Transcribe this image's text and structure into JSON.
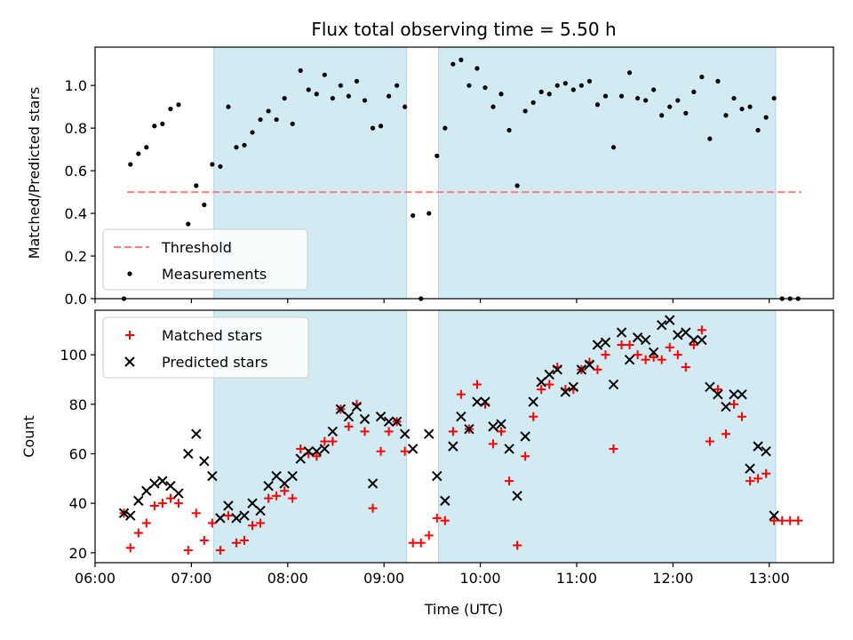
{
  "figure": {
    "title": "Flux total observing time = 5.50 h",
    "xlabel": "Time (UTC)"
  },
  "colors": {
    "shade": "#add8e6",
    "threshold": "#ff7f7f",
    "measurements": "#000000",
    "matched": "#ff0000",
    "predicted": "#000000",
    "axes": "#000000"
  },
  "chart_data": [
    {
      "type": "scatter",
      "panel": "top",
      "ylabel": "Matched/Predicted stars",
      "xlim": [
        "06:00",
        "13:40"
      ],
      "ylim": [
        0,
        1.18
      ],
      "yticks": [
        0.0,
        0.2,
        0.4,
        0.6,
        0.8,
        1.0
      ],
      "ytick_labels": [
        "0.0",
        "0.2",
        "0.4",
        "0.6",
        "0.8",
        "1.0"
      ],
      "xtick_labels": [],
      "shaded_intervals": [
        [
          "07:14",
          "09:14"
        ],
        [
          "09:34",
          "13:04"
        ]
      ],
      "legend": {
        "placement": "lower left",
        "entries": [
          "Threshold",
          "Measurements"
        ]
      },
      "threshold": {
        "name": "Threshold",
        "y": 0.5,
        "x": [
          "06:20",
          "13:20"
        ]
      },
      "series": [
        {
          "name": "Measurements",
          "marker": "dot",
          "points": [
            [
              "06:18",
              0.0
            ],
            [
              "06:22",
              0.63
            ],
            [
              "06:27",
              0.68
            ],
            [
              "06:32",
              0.71
            ],
            [
              "06:37",
              0.81
            ],
            [
              "06:42",
              0.82
            ],
            [
              "06:47",
              0.89
            ],
            [
              "06:52",
              0.91
            ],
            [
              "06:58",
              0.35
            ],
            [
              "07:03",
              0.53
            ],
            [
              "07:08",
              0.44
            ],
            [
              "07:13",
              0.63
            ],
            [
              "07:18",
              0.62
            ],
            [
              "07:23",
              0.9
            ],
            [
              "07:28",
              0.71
            ],
            [
              "07:33",
              0.72
            ],
            [
              "07:38",
              0.78
            ],
            [
              "07:43",
              0.84
            ],
            [
              "07:48",
              0.88
            ],
            [
              "07:53",
              0.84
            ],
            [
              "07:58",
              0.94
            ],
            [
              "08:03",
              0.82
            ],
            [
              "08:08",
              1.07
            ],
            [
              "08:13",
              0.98
            ],
            [
              "08:18",
              0.96
            ],
            [
              "08:23",
              1.05
            ],
            [
              "08:28",
              0.94
            ],
            [
              "08:33",
              1.0
            ],
            [
              "08:38",
              0.95
            ],
            [
              "08:43",
              1.02
            ],
            [
              "08:48",
              0.93
            ],
            [
              "08:53",
              0.8
            ],
            [
              "08:58",
              0.81
            ],
            [
              "09:03",
              0.95
            ],
            [
              "09:08",
              1.0
            ],
            [
              "09:13",
              0.9
            ],
            [
              "09:18",
              0.39
            ],
            [
              "09:23",
              0.0
            ],
            [
              "09:28",
              0.4
            ],
            [
              "09:33",
              0.67
            ],
            [
              "09:38",
              0.8
            ],
            [
              "09:43",
              1.1
            ],
            [
              "09:48",
              1.12
            ],
            [
              "09:53",
              1.0
            ],
            [
              "09:58",
              1.08
            ],
            [
              "10:03",
              0.99
            ],
            [
              "10:08",
              0.9
            ],
            [
              "10:13",
              0.96
            ],
            [
              "10:18",
              0.79
            ],
            [
              "10:23",
              0.53
            ],
            [
              "10:28",
              0.88
            ],
            [
              "10:33",
              0.92
            ],
            [
              "10:38",
              0.97
            ],
            [
              "10:43",
              0.96
            ],
            [
              "10:48",
              1.0
            ],
            [
              "10:53",
              1.01
            ],
            [
              "10:58",
              0.98
            ],
            [
              "11:03",
              1.0
            ],
            [
              "11:08",
              1.02
            ],
            [
              "11:13",
              0.91
            ],
            [
              "11:18",
              0.95
            ],
            [
              "11:23",
              0.71
            ],
            [
              "11:28",
              0.95
            ],
            [
              "11:33",
              1.06
            ],
            [
              "11:38",
              0.94
            ],
            [
              "11:43",
              0.93
            ],
            [
              "11:48",
              0.98
            ],
            [
              "11:53",
              0.86
            ],
            [
              "11:58",
              0.9
            ],
            [
              "12:03",
              0.93
            ],
            [
              "12:08",
              0.87
            ],
            [
              "12:13",
              0.97
            ],
            [
              "12:18",
              1.04
            ],
            [
              "12:23",
              0.75
            ],
            [
              "12:28",
              1.02
            ],
            [
              "12:33",
              0.86
            ],
            [
              "12:38",
              0.94
            ],
            [
              "12:43",
              0.89
            ],
            [
              "12:48",
              0.9
            ],
            [
              "12:53",
              0.79
            ],
            [
              "12:58",
              0.85
            ],
            [
              "13:03",
              0.94
            ],
            [
              "13:08",
              0.0
            ],
            [
              "13:13",
              0.0
            ],
            [
              "13:18",
              0.0
            ]
          ]
        }
      ]
    },
    {
      "type": "scatter",
      "panel": "bottom",
      "ylabel": "Count",
      "xlim": [
        "06:00",
        "13:40"
      ],
      "ylim": [
        16,
        118
      ],
      "yticks": [
        20,
        40,
        60,
        80,
        100
      ],
      "ytick_labels": [
        "20",
        "40",
        "60",
        "80",
        "100"
      ],
      "xtick_labels": [
        "06:00",
        "07:00",
        "08:00",
        "09:00",
        "10:00",
        "11:00",
        "12:00",
        "13:00"
      ],
      "shaded_intervals": [
        [
          "07:14",
          "09:14"
        ],
        [
          "09:34",
          "13:04"
        ]
      ],
      "legend": {
        "placement": "upper left",
        "entries": [
          "Matched stars",
          "Predicted stars"
        ]
      },
      "series": [
        {
          "name": "Matched stars",
          "marker": "plus",
          "points": [
            [
              "06:18",
              36
            ],
            [
              "06:22",
              22
            ],
            [
              "06:27",
              28
            ],
            [
              "06:32",
              32
            ],
            [
              "06:37",
              39
            ],
            [
              "06:42",
              40
            ],
            [
              "06:47",
              42
            ],
            [
              "06:52",
              40
            ],
            [
              "06:58",
              21
            ],
            [
              "07:03",
              36
            ],
            [
              "07:08",
              25
            ],
            [
              "07:13",
              32
            ],
            [
              "07:18",
              21
            ],
            [
              "07:23",
              35
            ],
            [
              "07:28",
              24
            ],
            [
              "07:33",
              25
            ],
            [
              "07:38",
              31
            ],
            [
              "07:43",
              32
            ],
            [
              "07:48",
              42
            ],
            [
              "07:53",
              43
            ],
            [
              "07:58",
              45
            ],
            [
              "08:03",
              42
            ],
            [
              "08:08",
              62
            ],
            [
              "08:13",
              60
            ],
            [
              "08:18",
              59
            ],
            [
              "08:23",
              65
            ],
            [
              "08:28",
              65
            ],
            [
              "08:33",
              78
            ],
            [
              "08:38",
              71
            ],
            [
              "08:43",
              80
            ],
            [
              "08:48",
              69
            ],
            [
              "08:53",
              38
            ],
            [
              "08:58",
              61
            ],
            [
              "09:03",
              69
            ],
            [
              "09:08",
              73
            ],
            [
              "09:13",
              61
            ],
            [
              "09:18",
              24
            ],
            [
              "09:23",
              24
            ],
            [
              "09:28",
              27
            ],
            [
              "09:33",
              34
            ],
            [
              "09:38",
              33
            ],
            [
              "09:43",
              69
            ],
            [
              "09:48",
              84
            ],
            [
              "09:53",
              70
            ],
            [
              "09:58",
              88
            ],
            [
              "10:03",
              80
            ],
            [
              "10:08",
              64
            ],
            [
              "10:13",
              69
            ],
            [
              "10:18",
              49
            ],
            [
              "10:23",
              23
            ],
            [
              "10:28",
              59
            ],
            [
              "10:33",
              75
            ],
            [
              "10:38",
              86
            ],
            [
              "10:43",
              88
            ],
            [
              "10:48",
              95
            ],
            [
              "10:53",
              86
            ],
            [
              "10:58",
              86
            ],
            [
              "11:03",
              94
            ],
            [
              "11:08",
              97
            ],
            [
              "11:13",
              94
            ],
            [
              "11:18",
              100
            ],
            [
              "11:23",
              62
            ],
            [
              "11:28",
              104
            ],
            [
              "11:33",
              104
            ],
            [
              "11:38",
              100
            ],
            [
              "11:43",
              98
            ],
            [
              "11:48",
              99
            ],
            [
              "11:53",
              98
            ],
            [
              "11:58",
              103
            ],
            [
              "12:03",
              100
            ],
            [
              "12:08",
              95
            ],
            [
              "12:13",
              104
            ],
            [
              "12:18",
              110
            ],
            [
              "12:23",
              65
            ],
            [
              "12:28",
              86
            ],
            [
              "12:33",
              68
            ],
            [
              "12:38",
              80
            ],
            [
              "12:43",
              75
            ],
            [
              "12:48",
              49
            ],
            [
              "12:53",
              50
            ],
            [
              "12:58",
              52
            ],
            [
              "13:03",
              33
            ],
            [
              "13:08",
              33
            ],
            [
              "13:13",
              33
            ],
            [
              "13:18",
              33
            ]
          ]
        },
        {
          "name": "Predicted stars",
          "marker": "x",
          "points": [
            [
              "06:18",
              36
            ],
            [
              "06:22",
              35
            ],
            [
              "06:27",
              41
            ],
            [
              "06:32",
              45
            ],
            [
              "06:37",
              48
            ],
            [
              "06:42",
              49
            ],
            [
              "06:47",
              47
            ],
            [
              "06:52",
              44
            ],
            [
              "06:58",
              60
            ],
            [
              "07:03",
              68
            ],
            [
              "07:08",
              57
            ],
            [
              "07:13",
              51
            ],
            [
              "07:18",
              34
            ],
            [
              "07:23",
              39
            ],
            [
              "07:28",
              34
            ],
            [
              "07:33",
              35
            ],
            [
              "07:38",
              40
            ],
            [
              "07:43",
              37
            ],
            [
              "07:48",
              47
            ],
            [
              "07:53",
              51
            ],
            [
              "07:58",
              48
            ],
            [
              "08:03",
              51
            ],
            [
              "08:08",
              58
            ],
            [
              "08:13",
              61
            ],
            [
              "08:18",
              61
            ],
            [
              "08:23",
              62
            ],
            [
              "08:28",
              69
            ],
            [
              "08:33",
              78
            ],
            [
              "08:38",
              75
            ],
            [
              "08:43",
              79
            ],
            [
              "08:48",
              74
            ],
            [
              "08:53",
              48
            ],
            [
              "08:58",
              75
            ],
            [
              "09:03",
              73
            ],
            [
              "09:08",
              73
            ],
            [
              "09:13",
              68
            ],
            [
              "09:18",
              62
            ],
            [
              "09:28",
              68
            ],
            [
              "09:33",
              51
            ],
            [
              "09:38",
              41
            ],
            [
              "09:43",
              63
            ],
            [
              "09:48",
              75
            ],
            [
              "09:53",
              70
            ],
            [
              "09:58",
              81
            ],
            [
              "10:03",
              81
            ],
            [
              "10:08",
              71
            ],
            [
              "10:13",
              72
            ],
            [
              "10:18",
              62
            ],
            [
              "10:23",
              43
            ],
            [
              "10:28",
              67
            ],
            [
              "10:33",
              81
            ],
            [
              "10:38",
              89
            ],
            [
              "10:43",
              92
            ],
            [
              "10:48",
              94
            ],
            [
              "10:53",
              85
            ],
            [
              "10:58",
              87
            ],
            [
              "11:03",
              94
            ],
            [
              "11:08",
              96
            ],
            [
              "11:13",
              104
            ],
            [
              "11:18",
              105
            ],
            [
              "11:23",
              88
            ],
            [
              "11:28",
              109
            ],
            [
              "11:33",
              98
            ],
            [
              "11:38",
              107
            ],
            [
              "11:43",
              106
            ],
            [
              "11:48",
              101
            ],
            [
              "11:53",
              112
            ],
            [
              "11:58",
              114
            ],
            [
              "12:03",
              108
            ],
            [
              "12:08",
              109
            ],
            [
              "12:13",
              106
            ],
            [
              "12:18",
              106
            ],
            [
              "12:23",
              87
            ],
            [
              "12:28",
              84
            ],
            [
              "12:33",
              79
            ],
            [
              "12:38",
              84
            ],
            [
              "12:43",
              84
            ],
            [
              "12:48",
              54
            ],
            [
              "12:53",
              63
            ],
            [
              "12:58",
              61
            ],
            [
              "13:03",
              35
            ]
          ]
        }
      ]
    }
  ]
}
